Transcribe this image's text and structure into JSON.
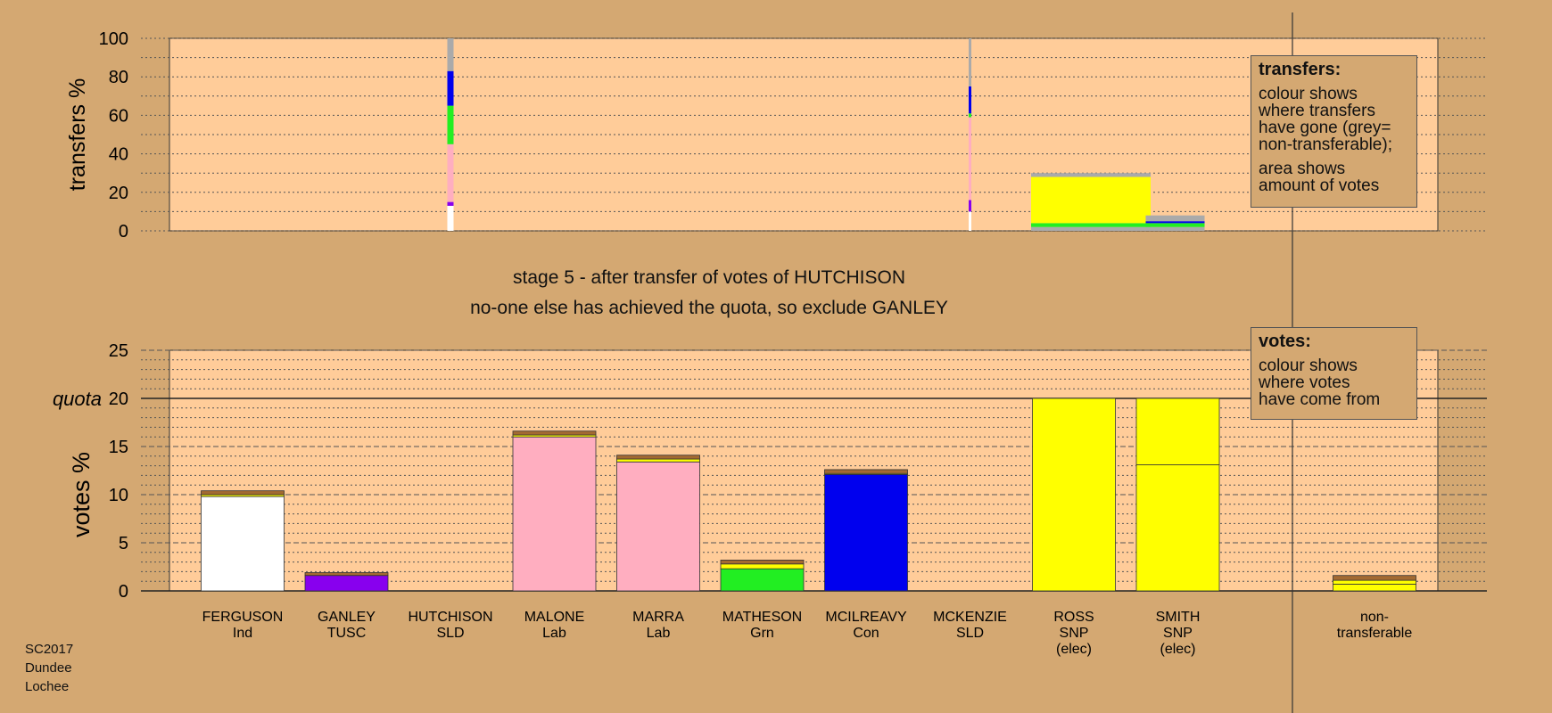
{
  "heading": {
    "stage": "stage 5 - after transfer of votes of HUTCHISON",
    "exclude": "no-one else has achieved the quota, so exclude GANLEY"
  },
  "legend_transfers": {
    "title": "transfers:",
    "lines": [
      "colour shows",
      "where transfers",
      "have gone (grey=",
      "non-transferable);"
    ],
    "lines2": [
      "area shows",
      "amount of votes"
    ]
  },
  "legend_votes": {
    "title": "votes:",
    "lines": [
      "colour shows",
      "where votes",
      "have come from"
    ]
  },
  "footer": [
    "SC2017",
    "Dundee",
    "Lochee"
  ],
  "colors": {
    "background": "#d4a872",
    "plot": "#ffcc99",
    "Ind": "#ffffff",
    "TUSC": "#8800ee",
    "SLD": "#ffb0c8",
    "Lab": "#ffaec0",
    "Grn": "#22ee22",
    "Con": "#0000ee",
    "SNP": "#ffff00",
    "nontransferable": "#aaaaaa",
    "transfer_strip": "#a36a32"
  },
  "chart_data": [
    {
      "type": "bar",
      "ylabel": "transfers %",
      "ylim": [
        0,
        100
      ],
      "yticks": [
        0,
        20,
        40,
        60,
        80,
        100
      ],
      "description": "transfer fractions of votes from candidates whose votes have been transferred, colored by destination",
      "columns": [
        {
          "candidate": "HUTCHISON",
          "segments": [
            {
              "to": "Ind",
              "from_pct": 0,
              "to_pct": 13
            },
            {
              "to": "TUSC",
              "from_pct": 13,
              "to_pct": 15
            },
            {
              "to": "Lab",
              "from_pct": 15,
              "to_pct": 45
            },
            {
              "to": "Grn",
              "from_pct": 45,
              "to_pct": 65
            },
            {
              "to": "Con",
              "from_pct": 65,
              "to_pct": 83
            },
            {
              "to": "nontransferable",
              "from_pct": 83,
              "to_pct": 100
            }
          ]
        },
        {
          "candidate": "MCKENZIE",
          "segments": [
            {
              "to": "Ind",
              "from_pct": 0,
              "to_pct": 10
            },
            {
              "to": "TUSC",
              "from_pct": 10,
              "to_pct": 16
            },
            {
              "to": "Lab",
              "from_pct": 16,
              "to_pct": 59
            },
            {
              "to": "Grn",
              "from_pct": 59,
              "to_pct": 61
            },
            {
              "to": "Con",
              "from_pct": 61,
              "to_pct": 62
            },
            {
              "to": "Con",
              "from_pct": 62,
              "to_pct": 75
            },
            {
              "to": "nontransferable",
              "from_pct": 75,
              "to_pct": 100
            }
          ]
        },
        {
          "candidate": "ROSS",
          "segments": [
            {
              "to": "nontransferable",
              "from_pct": 0,
              "to_pct": 2
            },
            {
              "to": "Grn",
              "from_pct": 2,
              "to_pct": 4
            },
            {
              "to": "SNP",
              "from_pct": 4,
              "to_pct": 28
            },
            {
              "to": "nontransferable",
              "from_pct": 28,
              "to_pct": 30
            }
          ]
        },
        {
          "candidate": "SMITH",
          "segments": [
            {
              "to": "nontransferable",
              "from_pct": 0,
              "to_pct": 2
            },
            {
              "to": "Grn",
              "from_pct": 2,
              "to_pct": 4
            },
            {
              "to": "Con",
              "from_pct": 4,
              "to_pct": 5
            },
            {
              "to": "nontransferable",
              "from_pct": 5,
              "to_pct": 8
            }
          ]
        }
      ]
    },
    {
      "type": "bar",
      "ylabel": "votes %",
      "ylim": [
        0,
        25
      ],
      "yticks": [
        0,
        5,
        10,
        15,
        20,
        25
      ],
      "quota": 20,
      "quota_label": "quota",
      "candidates": [
        {
          "name": "FERGUSON",
          "party": "Ind",
          "extra": "",
          "total": 10.4,
          "segments": [
            {
              "color": "Ind",
              "value": 9.8
            },
            {
              "color": "SNP",
              "value": 0.2
            },
            {
              "color": "transfer_strip",
              "value": 0.4
            }
          ]
        },
        {
          "name": "GANLEY",
          "party": "TUSC",
          "extra": "",
          "total": 1.9,
          "segments": [
            {
              "color": "TUSC",
              "value": 1.6
            },
            {
              "color": "transfer_strip",
              "value": 0.3
            }
          ]
        },
        {
          "name": "HUTCHISON",
          "party": "SLD",
          "extra": "",
          "total": 0,
          "segments": []
        },
        {
          "name": "MALONE",
          "party": "Lab",
          "extra": "",
          "total": 16.6,
          "segments": [
            {
              "color": "Lab",
              "value": 16.0
            },
            {
              "color": "SNP",
              "value": 0.2
            },
            {
              "color": "transfer_strip",
              "value": 0.4
            }
          ]
        },
        {
          "name": "MARRA",
          "party": "Lab",
          "extra": "",
          "total": 14.1,
          "segments": [
            {
              "color": "Lab",
              "value": 13.4
            },
            {
              "color": "SNP",
              "value": 0.3
            },
            {
              "color": "transfer_strip",
              "value": 0.4
            }
          ]
        },
        {
          "name": "MATHESON",
          "party": "Grn",
          "extra": "",
          "total": 3.2,
          "segments": [
            {
              "color": "Grn",
              "value": 2.3
            },
            {
              "color": "SNP",
              "value": 0.5
            },
            {
              "color": "transfer_strip",
              "value": 0.4
            }
          ]
        },
        {
          "name": "MCILREAVY",
          "party": "Con",
          "extra": "",
          "total": 12.6,
          "segments": [
            {
              "color": "Con",
              "value": 12.1
            },
            {
              "color": "SNP",
              "value": 0.1
            },
            {
              "color": "transfer_strip",
              "value": 0.4
            }
          ]
        },
        {
          "name": "MCKENZIE",
          "party": "SLD",
          "extra": "",
          "total": 0,
          "segments": []
        },
        {
          "name": "ROSS",
          "party": "SNP",
          "extra": "(elec)",
          "total": 20,
          "segments": [
            {
              "color": "SNP",
              "value": 20
            }
          ]
        },
        {
          "name": "SMITH",
          "party": "SNP",
          "extra": "(elec)",
          "total": 20,
          "segments": [
            {
              "color": "SNP",
              "value": 13.1
            },
            {
              "color": "SNP",
              "value": 6.9
            }
          ]
        }
      ],
      "nontransferable": {
        "label1": "non-",
        "label2": "transferable",
        "total": 1.6,
        "segments": [
          {
            "color": "SNP",
            "value": 0.7
          },
          {
            "color": "SNP",
            "value": 0.4
          },
          {
            "color": "transfer_strip",
            "value": 0.5
          }
        ]
      }
    }
  ]
}
